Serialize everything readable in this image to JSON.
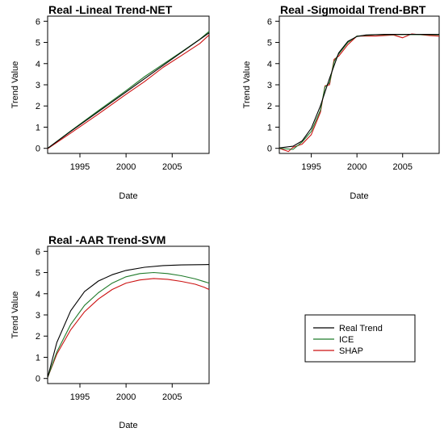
{
  "colors": {
    "real": "#000000",
    "ice": "#1f7a2a",
    "shap": "#cc1111"
  },
  "legend": {
    "entries": [
      {
        "label": "Real Trend",
        "color": "#000000"
      },
      {
        "label": "ICE",
        "color": "#1f7a2a"
      },
      {
        "label": "SHAP",
        "color": "#cc1111"
      }
    ]
  },
  "chart_data": [
    {
      "type": "line",
      "title": "Real -Lineal Trend-NET",
      "xlabel": "Date",
      "ylabel": "Trend Value",
      "xlim": [
        1991.5,
        2009.0
      ],
      "ylim": [
        0,
        6
      ],
      "xticks": [
        1995,
        2000,
        2005
      ],
      "yticks": [
        0,
        1,
        2,
        3,
        4,
        5,
        6
      ],
      "series": [
        {
          "name": "Real Trend",
          "color": "#000000",
          "x": [
            1991.5,
            1994,
            1997,
            2000,
            2003,
            2006,
            2009
          ],
          "y": [
            0.0,
            0.8,
            1.73,
            2.66,
            3.6,
            4.53,
            5.45
          ]
        },
        {
          "name": "ICE",
          "color": "#1f7a2a",
          "x": [
            1991.5,
            1994,
            1997,
            2000,
            2002,
            2004,
            2006,
            2008,
            2009
          ],
          "y": [
            0.0,
            0.82,
            1.78,
            2.72,
            3.38,
            3.97,
            4.55,
            5.15,
            5.52
          ]
        },
        {
          "name": "SHAP",
          "color": "#cc1111",
          "x": [
            1991.5,
            1994,
            1997,
            2000,
            2002,
            2004,
            2006,
            2008,
            2009
          ],
          "y": [
            -0.02,
            0.72,
            1.62,
            2.55,
            3.15,
            3.82,
            4.38,
            4.95,
            5.35
          ]
        }
      ]
    },
    {
      "type": "line",
      "title": "Real -Sigmoidal Trend-BRT",
      "xlabel": "Date",
      "ylabel": "Trend Value",
      "xlim": [
        1991.5,
        2009.0
      ],
      "ylim": [
        0,
        6
      ],
      "xticks": [
        1995,
        2000,
        2005
      ],
      "yticks": [
        0,
        1,
        2,
        3,
        4,
        5,
        6
      ],
      "series": [
        {
          "name": "Real Trend",
          "color": "#000000",
          "x": [
            1991.5,
            1993,
            1994,
            1995,
            1996,
            1997,
            1998,
            1999,
            2000,
            2001,
            2003,
            2006,
            2009
          ],
          "y": [
            0.02,
            0.1,
            0.35,
            0.95,
            2.0,
            3.3,
            4.5,
            5.05,
            5.28,
            5.35,
            5.38,
            5.38,
            5.38
          ]
        },
        {
          "name": "ICE",
          "color": "#1f7a2a",
          "x": [
            1991.5,
            1993,
            1994,
            1995,
            1996,
            1996.5,
            1997,
            1997.5,
            1998,
            1999,
            2000,
            2002,
            2005,
            2009
          ],
          "y": [
            0.0,
            -0.05,
            0.3,
            0.8,
            1.8,
            2.9,
            3.1,
            4.1,
            4.45,
            5.0,
            5.3,
            5.36,
            5.37,
            5.36
          ]
        },
        {
          "name": "SHAP",
          "color": "#cc1111",
          "x": [
            1991.5,
            1992.5,
            1993,
            1994,
            1995,
            1996,
            1996.5,
            1997,
            1997.5,
            1998,
            1999,
            2000,
            2002,
            2004,
            2005,
            2006,
            2008,
            2009
          ],
          "y": [
            0.0,
            -0.15,
            0.05,
            0.2,
            0.65,
            1.7,
            2.95,
            3.0,
            4.2,
            4.35,
            4.9,
            5.3,
            5.3,
            5.35,
            5.22,
            5.4,
            5.32,
            5.3
          ]
        }
      ]
    },
    {
      "type": "line",
      "title": "Real -AAR Trend-SVM",
      "xlabel": "Date",
      "ylabel": "Trend Value",
      "xlim": [
        1991.5,
        2009.0
      ],
      "ylim": [
        0,
        6
      ],
      "xticks": [
        1995,
        2000,
        2005
      ],
      "yticks": [
        0,
        1,
        2,
        3,
        4,
        5,
        6
      ],
      "series": [
        {
          "name": "Real Trend",
          "color": "#000000",
          "x": [
            1991.5,
            1992.5,
            1994,
            1995.5,
            1997,
            1998.5,
            2000,
            2002,
            2004,
            2006,
            2009
          ],
          "y": [
            0.05,
            1.7,
            3.2,
            4.1,
            4.6,
            4.9,
            5.1,
            5.25,
            5.33,
            5.36,
            5.38
          ]
        },
        {
          "name": "ICE",
          "color": "#1f7a2a",
          "x": [
            1991.5,
            1992.5,
            1994,
            1995.5,
            1997,
            1998.5,
            2000,
            2001.5,
            2003,
            2004.5,
            2006,
            2007.5,
            2009
          ],
          "y": [
            0.05,
            1.25,
            2.55,
            3.45,
            4.05,
            4.5,
            4.8,
            4.95,
            5.0,
            4.95,
            4.85,
            4.7,
            4.5
          ]
        },
        {
          "name": "SHAP",
          "color": "#cc1111",
          "x": [
            1991.5,
            1992.5,
            1994,
            1995.5,
            1997,
            1998.5,
            2000,
            2001.5,
            2003,
            2004.5,
            2006,
            2007.5,
            2008.5,
            2009
          ],
          "y": [
            0.05,
            1.15,
            2.3,
            3.15,
            3.75,
            4.2,
            4.5,
            4.65,
            4.72,
            4.68,
            4.58,
            4.45,
            4.3,
            4.2
          ]
        }
      ]
    }
  ]
}
